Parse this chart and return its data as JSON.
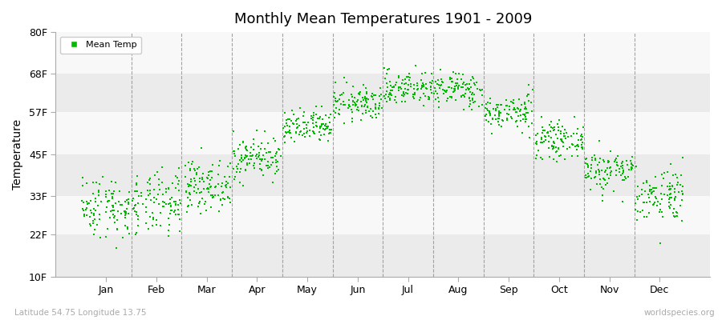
{
  "title": "Monthly Mean Temperatures 1901 - 2009",
  "ylabel": "Temperature",
  "yticks": [
    10,
    22,
    33,
    45,
    57,
    68,
    80
  ],
  "ytick_labels": [
    "10F",
    "22F",
    "33F",
    "45F",
    "57F",
    "68F",
    "80F"
  ],
  "ylim": [
    10,
    80
  ],
  "xlim": [
    0.0,
    13.0
  ],
  "months": [
    "Jan",
    "Feb",
    "Mar",
    "Apr",
    "May",
    "Jun",
    "Jul",
    "Aug",
    "Sep",
    "Oct",
    "Nov",
    "Dec"
  ],
  "month_positions": [
    1,
    2,
    3,
    4,
    5,
    6,
    7,
    8,
    9,
    10,
    11,
    12
  ],
  "dot_color": "#00bb00",
  "dot_size": 3,
  "background_bands": [
    {
      "ymin": 10,
      "ymax": 22,
      "color": "#ebebeb"
    },
    {
      "ymin": 22,
      "ymax": 33,
      "color": "#f8f8f8"
    },
    {
      "ymin": 33,
      "ymax": 45,
      "color": "#ebebeb"
    },
    {
      "ymin": 45,
      "ymax": 57,
      "color": "#f8f8f8"
    },
    {
      "ymin": 57,
      "ymax": 68,
      "color": "#ebebeb"
    },
    {
      "ymin": 68,
      "ymax": 80,
      "color": "#f8f8f8"
    }
  ],
  "legend_label": "Mean Temp",
  "bottom_left": "Latitude 54.75 Longitude 13.75",
  "bottom_right": "worldspecies.org",
  "mean_temps_f": {
    "Jan": 30.0,
    "Feb": 30.5,
    "Mar": 36.0,
    "Apr": 44.0,
    "May": 52.5,
    "Jun": 59.5,
    "Jul": 64.0,
    "Aug": 63.5,
    "Sep": 57.0,
    "Oct": 49.0,
    "Nov": 40.5,
    "Dec": 33.5
  },
  "std_temps_f": {
    "Jan": 4.5,
    "Feb": 4.5,
    "Mar": 3.5,
    "Apr": 3.0,
    "May": 2.5,
    "Jun": 2.5,
    "Jul": 2.5,
    "Aug": 2.5,
    "Sep": 2.5,
    "Oct": 2.5,
    "Nov": 3.0,
    "Dec": 4.0
  },
  "n_years": 109,
  "figsize": [
    9.0,
    4.0
  ],
  "dpi": 100
}
